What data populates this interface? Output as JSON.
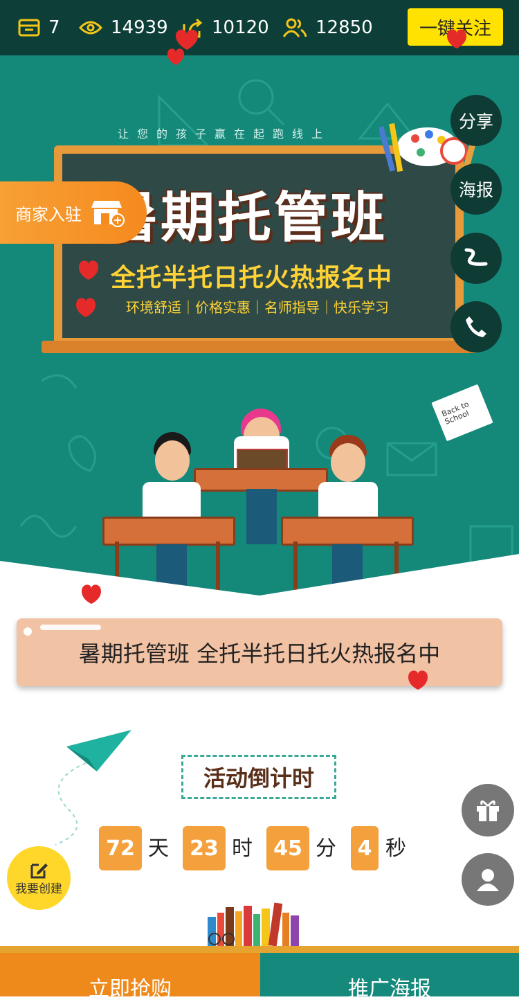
{
  "stats": {
    "shop_count": "7",
    "views": "14939",
    "shares": "10120",
    "users": "12850"
  },
  "follow_label": "一键关注",
  "hero": {
    "slogan": "让您的孩子赢在起跑线上",
    "title": "暑期托管班",
    "subtitle": "全托半托日托火热报名中",
    "features": "环境舒适｜价格实惠｜名师指导｜快乐学习",
    "note_text": "Back to School"
  },
  "merchant_label": "商家入驻",
  "side_buttons": {
    "share": "分享",
    "poster": "海报"
  },
  "title_card": "暑期托管班 全托半托日托火热报名中",
  "countdown": {
    "label": "活动倒计时",
    "days": "72",
    "days_unit": "天",
    "hours": "23",
    "hours_unit": "时",
    "minutes": "45",
    "minutes_unit": "分",
    "seconds": "4",
    "seconds_unit": "秒"
  },
  "create_label": "我要创建",
  "bottom": {
    "buy": "立即抢购",
    "poster": "推广海报"
  },
  "colors": {
    "topbar": "#0d3f38",
    "hero": "#14897a",
    "accent_yellow": "#ffe200",
    "orange": "#ee8a1c",
    "teal": "#158a7c"
  }
}
